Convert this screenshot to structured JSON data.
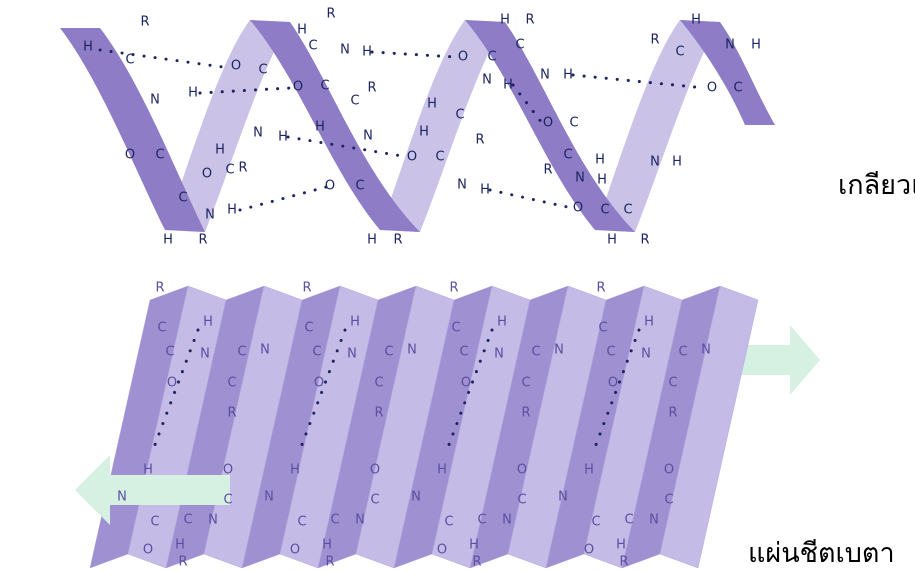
{
  "alpha_helix": {
    "label": "เกลียวแอลฟา",
    "atoms": [
      "H",
      "C",
      "R",
      "N",
      "H",
      "O",
      "C",
      "C",
      "H",
      "R",
      "N",
      "H",
      "N",
      "H",
      "H",
      "C",
      "R",
      "O",
      "O",
      "C",
      "O",
      "C",
      "R",
      "H",
      "C",
      "N",
      "H",
      "R",
      "C",
      "H",
      "N",
      "H",
      "O",
      "C",
      "H",
      "R",
      "O",
      "C",
      "N",
      "H",
      "H",
      "C",
      "R",
      "O",
      "C",
      "N",
      "H",
      "H",
      "R",
      "C",
      "N",
      "H",
      "O",
      "C",
      "R",
      "N",
      "H",
      "C",
      "H",
      "O",
      "C",
      "H",
      "R",
      "C",
      "R",
      "H",
      "C",
      "N",
      "H",
      "O",
      "C",
      "N",
      "H"
    ]
  },
  "beta_sheet": {
    "label": "แผ่นชีตเบตา",
    "atoms": [
      "R",
      "C",
      "C",
      "O",
      "N",
      "H",
      "C",
      "R",
      "C",
      "N",
      "R",
      "C",
      "C",
      "O",
      "N",
      "H",
      "C",
      "R",
      "C",
      "N",
      "R",
      "C",
      "C",
      "O",
      "N",
      "H",
      "C",
      "R",
      "C",
      "N",
      "R",
      "C",
      "C",
      "O",
      "N",
      "H",
      "C",
      "R",
      "C",
      "N",
      "H",
      "N",
      "C",
      "O",
      "C",
      "H",
      "R",
      "N",
      "C",
      "O",
      "H",
      "N",
      "C",
      "O",
      "C",
      "H",
      "R",
      "N",
      "C",
      "O",
      "H",
      "N",
      "C",
      "O",
      "C",
      "H",
      "R",
      "N",
      "C",
      "O",
      "H",
      "N",
      "C",
      "O",
      "C",
      "H",
      "R",
      "N",
      "C",
      "O"
    ]
  }
}
